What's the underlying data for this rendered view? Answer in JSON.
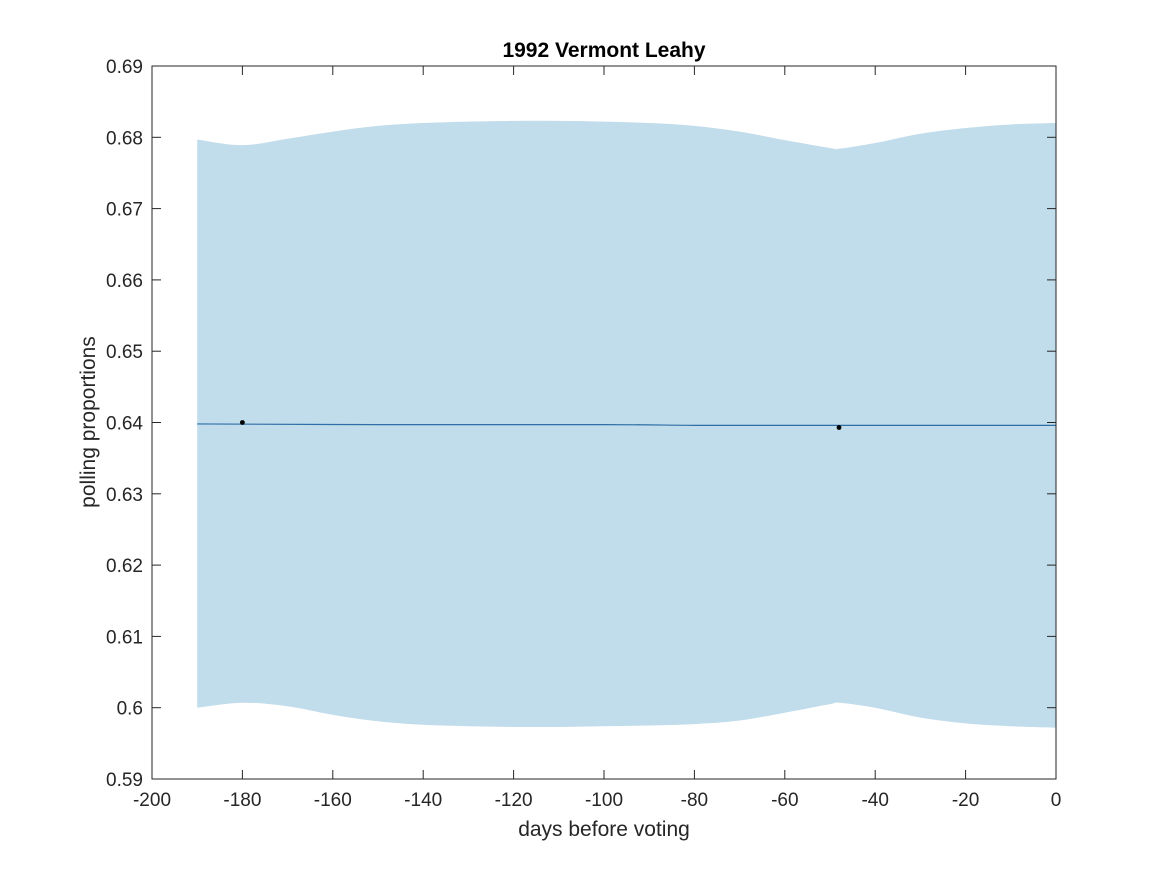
{
  "chart_data": {
    "type": "line",
    "title": "1992 Vermont Leahy",
    "xlabel": "days before voting",
    "ylabel": "polling proportions",
    "xlim": [
      -200,
      0
    ],
    "ylim": [
      0.59,
      0.69
    ],
    "xticks": [
      -200,
      -180,
      -160,
      -140,
      -120,
      -100,
      -80,
      -60,
      -40,
      -20,
      0
    ],
    "xtick_labels": [
      "-200",
      "-180",
      "-160",
      "-140",
      "-120",
      "-100",
      "-80",
      "-60",
      "-40",
      "-20",
      "0"
    ],
    "yticks": [
      0.59,
      0.6,
      0.61,
      0.62,
      0.63,
      0.64,
      0.65,
      0.66,
      0.67,
      0.68,
      0.69
    ],
    "ytick_labels": [
      "0.59",
      "0.6",
      "0.61",
      "0.62",
      "0.63",
      "0.64",
      "0.65",
      "0.66",
      "0.67",
      "0.68",
      "0.69"
    ],
    "grid": false,
    "band": {
      "x": [
        -190,
        -180,
        -170,
        -160,
        -150,
        -140,
        -130,
        -120,
        -110,
        -100,
        -90,
        -80,
        -70,
        -60,
        -50,
        -48,
        -40,
        -30,
        -20,
        -10,
        0
      ],
      "upper": [
        0.6797,
        0.6789,
        0.6798,
        0.6808,
        0.6816,
        0.682,
        0.6822,
        0.6823,
        0.6823,
        0.6822,
        0.682,
        0.6816,
        0.6808,
        0.6796,
        0.6785,
        0.6784,
        0.6792,
        0.6805,
        0.6813,
        0.6818,
        0.682
      ],
      "lower": [
        0.6,
        0.6007,
        0.6002,
        0.599,
        0.5981,
        0.5976,
        0.5974,
        0.5973,
        0.5973,
        0.5974,
        0.5975,
        0.5977,
        0.5982,
        0.5993,
        0.6005,
        0.6007,
        0.6,
        0.5986,
        0.5978,
        0.5974,
        0.5972
      ],
      "color": "#c1dceb"
    },
    "series": [
      {
        "x": [
          -190,
          -150,
          -100,
          -80,
          -60,
          -40,
          -20,
          0
        ],
        "values": [
          0.6398,
          0.6397,
          0.6397,
          0.6396,
          0.6396,
          0.6396,
          0.6396,
          0.6396
        ],
        "color": "#2f6fa7"
      }
    ],
    "points": {
      "x": [
        -180,
        -48
      ],
      "y": [
        0.64,
        0.6393
      ],
      "color": "#000000"
    }
  }
}
